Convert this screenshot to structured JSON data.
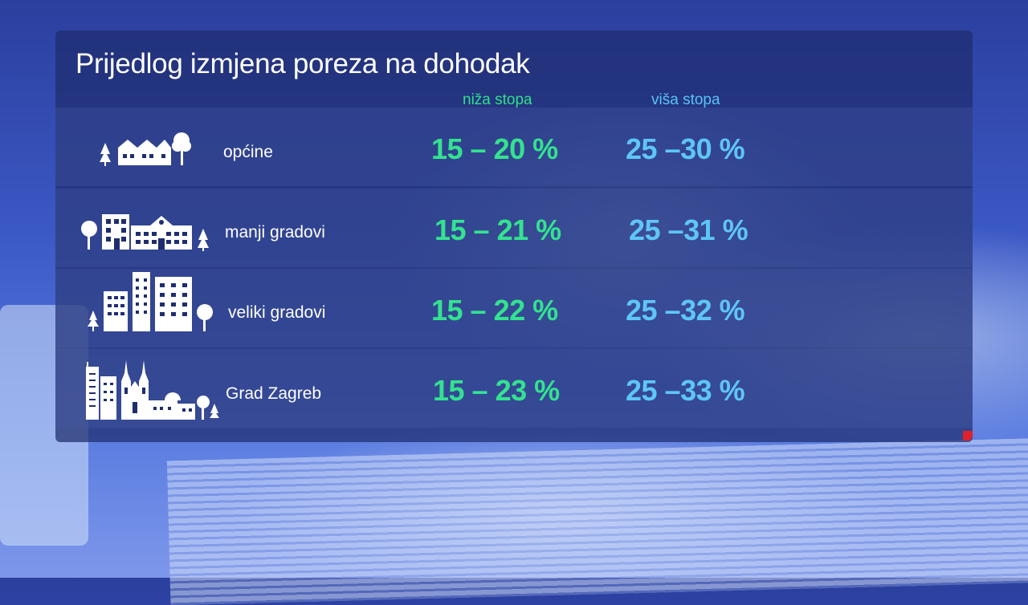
{
  "title": "Prijedlog izmjena poreza na dohodak",
  "columns": {
    "low": "niža stopa",
    "high": "viša stopa"
  },
  "rows": [
    {
      "label": "općine",
      "low": "15 – 20 %",
      "high": "25 –30 %",
      "icon": "village-icon"
    },
    {
      "label": "manji gradovi",
      "low": "15 – 21 %",
      "high": "25 –31 %",
      "icon": "small-town-icon"
    },
    {
      "label": "veliki gradovi",
      "low": "15 – 22 %",
      "high": "25 –32 %",
      "icon": "city-icon"
    },
    {
      "label": "Grad Zagreb",
      "low": "15 – 23 %",
      "high": "25 –33 %",
      "icon": "zagreb-skyline-icon"
    }
  ],
  "colors": {
    "low": "#33e290",
    "high": "#5ec6f7",
    "panel": "#1e2d6e"
  }
}
